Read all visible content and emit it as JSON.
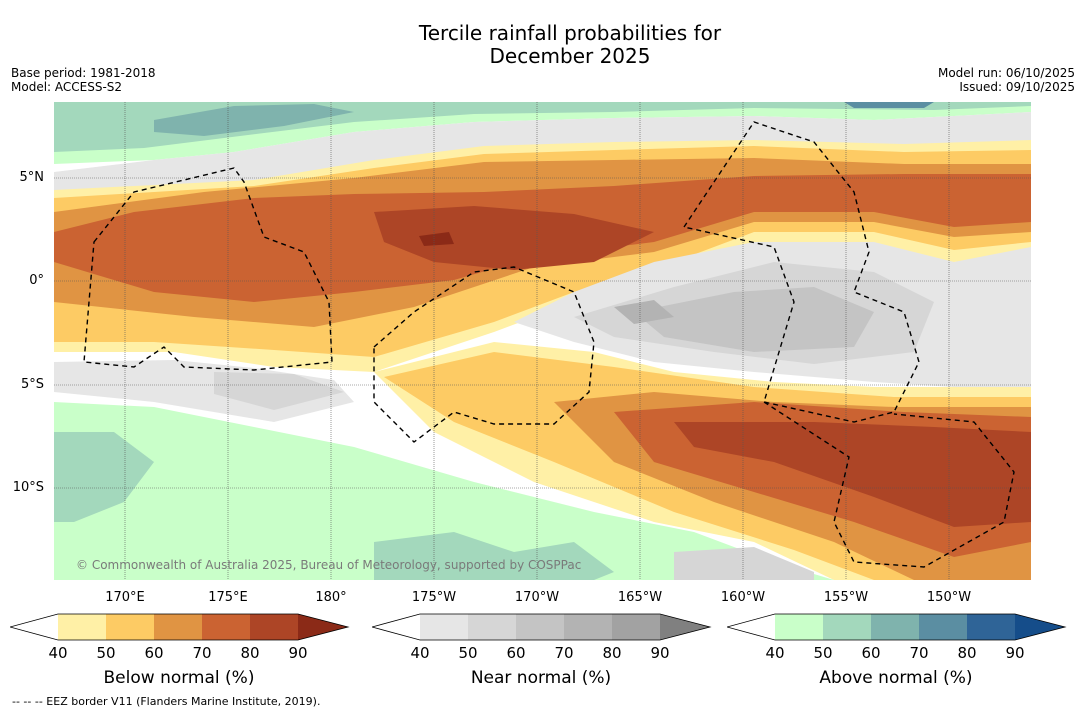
{
  "title_line1": "Tercile rainfall probabilities for",
  "title_line2": "December 2025",
  "meta_left": {
    "base_period": "Base period: 1981-2018",
    "model": "Model: ACCESS-S2"
  },
  "meta_right": {
    "model_run": "Model run: 06/10/2025",
    "issued": "Issued: 09/10/2025"
  },
  "lat_labels": [
    "5°N",
    "0°",
    "5°S",
    "10°S"
  ],
  "lon_labels": [
    "170°E",
    "175°E",
    "180°",
    "175°W",
    "170°W",
    "165°W",
    "160°W",
    "155°W",
    "150°W"
  ],
  "copyright": "© Commonwealth of Australia 2025, Bureau of Meteorology, supported by COSPPac",
  "colorbars": [
    {
      "title": "Below normal (%)",
      "ticks": [
        "40",
        "50",
        "60",
        "70",
        "80",
        "90"
      ],
      "colors": [
        "#ffffff",
        "#fff0a6",
        "#fdcb64",
        "#e09443",
        "#cb6332",
        "#ad4526",
        "#8b2a17"
      ]
    },
    {
      "title": "Near normal (%)",
      "ticks": [
        "40",
        "50",
        "60",
        "70",
        "80",
        "90"
      ],
      "colors": [
        "#ffffff",
        "#e6e6e6",
        "#d6d6d6",
        "#c4c4c4",
        "#b3b3b3",
        "#a2a2a2",
        "#808080"
      ]
    },
    {
      "title": "Above normal (%)",
      "ticks": [
        "40",
        "50",
        "60",
        "70",
        "80",
        "90"
      ],
      "colors": [
        "#ffffff",
        "#c9ffc9",
        "#a3d8bc",
        "#7fb3ad",
        "#5b8ea2",
        "#2f6497",
        "#154d8a"
      ]
    }
  ],
  "footnote": "--  --  -- EEZ border V11 (Flanders Marine Institute, 2019)."
}
